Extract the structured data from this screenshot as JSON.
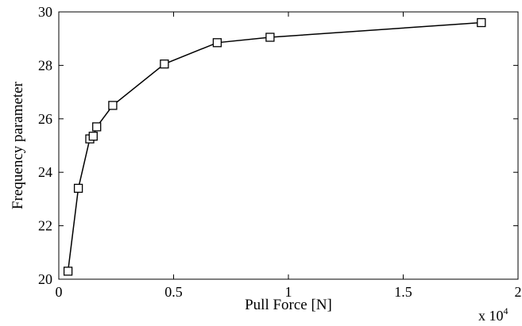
{
  "chart_data": {
    "type": "line",
    "xlabel": "Pull Force [N]",
    "ylabel": "Frequency parameter",
    "x_multiplier": {
      "base": "x 10",
      "exponent": "4"
    },
    "xlim": [
      0,
      2
    ],
    "ylim": [
      20,
      30
    ],
    "x_ticks": [
      0,
      0.5,
      1,
      1.5,
      2
    ],
    "x_tick_labels": [
      "0",
      "0.5",
      "1",
      "1.5",
      "2"
    ],
    "y_ticks": [
      20,
      22,
      24,
      26,
      28,
      30
    ],
    "y_tick_labels": [
      "20",
      "22",
      "24",
      "26",
      "28",
      "30"
    ],
    "grid": false,
    "marker": "square",
    "series": [
      {
        "x": [
          0.04,
          0.085,
          0.135,
          0.15,
          0.165,
          0.235,
          0.46,
          0.69,
          0.92,
          1.84
        ],
        "y": [
          20.3,
          23.4,
          25.25,
          25.35,
          25.7,
          26.5,
          28.05,
          28.85,
          29.05,
          29.6
        ],
        "color": "#000000"
      }
    ]
  }
}
